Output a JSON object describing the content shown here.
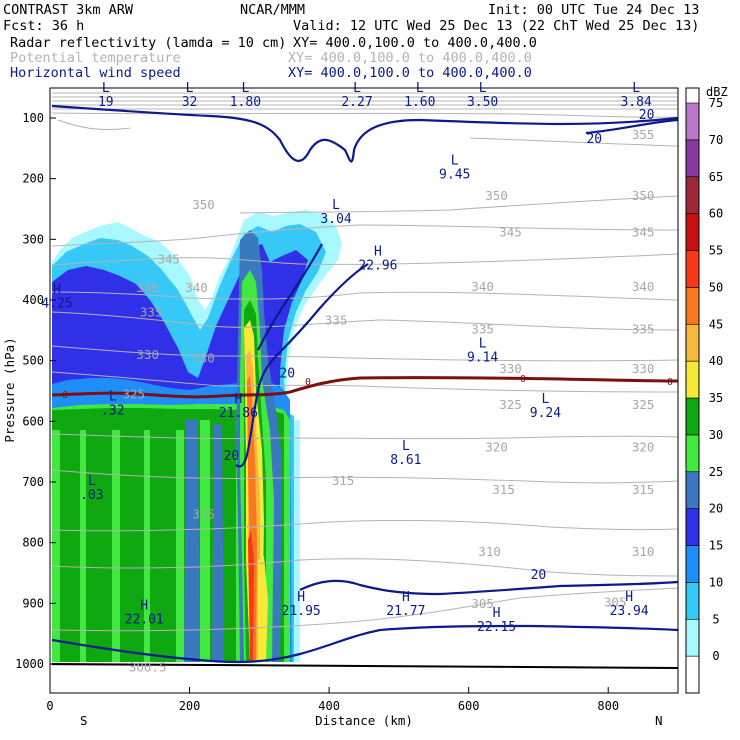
{
  "header": {
    "left1": "CONTRAST  3km ARW",
    "center1": "NCAR/MMM",
    "right1": "Init: 00 UTC Tue 24 Dec 13",
    "left2": "Fcst:   36 h",
    "right2": "Valid: 12 UTC Wed 25 Dec 13 (22 ChT Wed 25 Dec 13)",
    "field1_name": "Radar reflectivity (lamda = 10 cm)",
    "field1_xy": "XY= 400.0,100.0 to 400.0,400.0",
    "field2_name": "Potential temperature",
    "field2_xy": "XY= 400.0,100.0 to 400.0,400.0",
    "field3_name": "Horizontal wind speed",
    "field3_xy": "XY= 400.0,100.0 to 400.0,400.0"
  },
  "colors": {
    "theta": "#b4b4b4",
    "wind": "#0b1a8c",
    "zero_line": "#7a1010"
  },
  "chart_data": {
    "type": "heatmap",
    "title": "Radar reflectivity (lamda = 10 cm) cross section",
    "xlabel": "Distance (km)",
    "ylabel": "Pressure (hPa)",
    "xlim": [
      0,
      900
    ],
    "ylim": [
      1000,
      60
    ],
    "x_ticks": [
      0,
      200,
      400,
      600,
      800
    ],
    "x_tick_labels": [
      "0",
      "200",
      "400",
      "600",
      "800"
    ],
    "y_ticks": [
      100,
      200,
      300,
      400,
      500,
      600,
      700,
      800,
      900,
      1000
    ],
    "y_tick_labels": [
      "100",
      "200",
      "300",
      "400",
      "500",
      "600",
      "700",
      "800",
      "900",
      "1000"
    ],
    "direction_labels": {
      "left": "S",
      "right": "N"
    },
    "colorbar": {
      "unit": "dBZ",
      "levels": [
        "0",
        "5",
        "10",
        "15",
        "20",
        "25",
        "30",
        "35",
        "40",
        "45",
        "50",
        "55",
        "60",
        "65",
        "70",
        "75"
      ],
      "colors": [
        "#ffffff",
        "#a8f8ff",
        "#38c8f8",
        "#1f8ef8",
        "#3030e8",
        "#3a78c0",
        "#40e840",
        "#10a810",
        "#f8e838",
        "#f8b840",
        "#f87820",
        "#f83818",
        "#c81010",
        "#9c2838",
        "#8a38a0",
        "#b878c8"
      ]
    },
    "zero_contour_label": "0",
    "theta_labels": [
      {
        "label": "355",
        "x": 850,
        "p": 135
      },
      {
        "label": "350",
        "x": 220,
        "p": 250
      },
      {
        "label": "350",
        "x": 640,
        "p": 235
      },
      {
        "label": "350",
        "x": 850,
        "p": 235
      },
      {
        "label": "345",
        "x": 170,
        "p": 340
      },
      {
        "label": "345",
        "x": 660,
        "p": 295
      },
      {
        "label": "345",
        "x": 850,
        "p": 295
      },
      {
        "label": "340",
        "x": 140,
        "p": 387
      },
      {
        "label": "340",
        "x": 210,
        "p": 387
      },
      {
        "label": "340",
        "x": 620,
        "p": 385
      },
      {
        "label": "340",
        "x": 850,
        "p": 385
      },
      {
        "label": "335",
        "x": 145,
        "p": 427
      },
      {
        "label": "335",
        "x": 410,
        "p": 440
      },
      {
        "label": "335",
        "x": 620,
        "p": 455
      },
      {
        "label": "335",
        "x": 850,
        "p": 455
      },
      {
        "label": "330",
        "x": 140,
        "p": 497
      },
      {
        "label": "330",
        "x": 220,
        "p": 503
      },
      {
        "label": "330",
        "x": 660,
        "p": 520
      },
      {
        "label": "330",
        "x": 850,
        "p": 520
      },
      {
        "label": "325",
        "x": 120,
        "p": 562
      },
      {
        "label": "325",
        "x": 660,
        "p": 580
      },
      {
        "label": "325",
        "x": 850,
        "p": 580
      },
      {
        "label": "320",
        "x": 640,
        "p": 650
      },
      {
        "label": "320",
        "x": 850,
        "p": 650
      },
      {
        "label": "315",
        "x": 420,
        "p": 705
      },
      {
        "label": "315",
        "x": 650,
        "p": 720
      },
      {
        "label": "315",
        "x": 850,
        "p": 720
      },
      {
        "label": "315",
        "x": 220,
        "p": 760
      },
      {
        "label": "310",
        "x": 630,
        "p": 822
      },
      {
        "label": "310",
        "x": 850,
        "p": 822
      },
      {
        "label": "305",
        "x": 620,
        "p": 908
      },
      {
        "label": "305",
        "x": 810,
        "p": 905
      },
      {
        "label": "300.5",
        "x": 140,
        "p": 1012
      }
    ],
    "wind_hl": [
      {
        "mark": "L",
        "value": "19",
        "x": 80,
        "p": 80
      },
      {
        "mark": "L",
        "value": "32",
        "x": 200,
        "p": 80
      },
      {
        "mark": "L",
        "value": "1.80",
        "x": 280,
        "p": 80
      },
      {
        "mark": "L",
        "value": "2.27",
        "x": 440,
        "p": 80
      },
      {
        "mark": "L",
        "value": "1.60",
        "x": 530,
        "p": 80
      },
      {
        "mark": "L",
        "value": "3.50",
        "x": 620,
        "p": 80
      },
      {
        "mark": "L",
        "value": "3.84",
        "x": 840,
        "p": 80
      },
      {
        "mark": "L",
        "value": "9.45",
        "x": 580,
        "p": 200
      },
      {
        "mark": "L",
        "value": "3.04",
        "x": 410,
        "p": 273
      },
      {
        "mark": "H",
        "value": "22.96",
        "x": 470,
        "p": 350
      },
      {
        "mark": "H",
        "value": "4.25",
        "x": 10,
        "p": 412
      },
      {
        "mark": "L",
        "value": "9.14",
        "x": 620,
        "p": 501
      },
      {
        "mark": "L",
        "value": ".32",
        "x": 90,
        "p": 589
      },
      {
        "mark": "H",
        "value": "21.86",
        "x": 270,
        "p": 593
      },
      {
        "mark": "L",
        "value": "9.24",
        "x": 710,
        "p": 593
      },
      {
        "mark": "L",
        "value": "8.61",
        "x": 510,
        "p": 670
      },
      {
        "mark": "L",
        "value": ".03",
        "x": 60,
        "p": 728
      },
      {
        "mark": "H",
        "value": "22.01",
        "x": 135,
        "p": 933
      },
      {
        "mark": "H",
        "value": "21.95",
        "x": 360,
        "p": 919
      },
      {
        "mark": "H",
        "value": "21.77",
        "x": 510,
        "p": 919
      },
      {
        "mark": "H",
        "value": "22.15",
        "x": 640,
        "p": 946
      },
      {
        "mark": "H",
        "value": "23.94",
        "x": 830,
        "p": 919
      }
    ],
    "wind_contour_labels": [
      {
        "label": "20",
        "x": 855,
        "p": 102
      },
      {
        "label": "20",
        "x": 780,
        "p": 141
      },
      {
        "label": "20",
        "x": 340,
        "p": 528
      },
      {
        "label": "20",
        "x": 260,
        "p": 664
      },
      {
        "label": "20",
        "x": 700,
        "p": 860
      }
    ]
  }
}
